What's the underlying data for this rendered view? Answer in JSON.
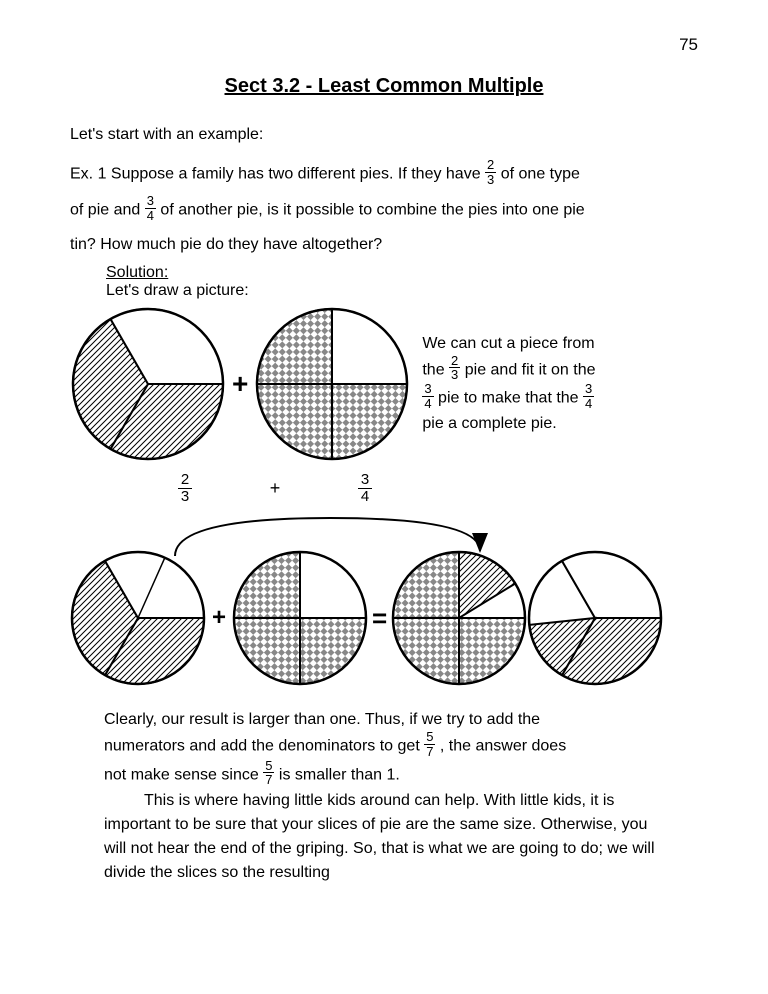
{
  "page_number": "75",
  "title": "Sect 3.2 - Least Common Multiple",
  "intro": "Let's start with an example:",
  "ex1": {
    "pre1": "Ex. 1 Suppose a family has two different pies. If they have ",
    "frac1": {
      "num": "2",
      "den": "3"
    },
    "mid1": " of one type",
    "pre2": "of pie and ",
    "frac2": {
      "num": "3",
      "den": "4"
    },
    "mid2": " of another pie, is it possible to combine the pies into one pie",
    "line3": "tin? How much pie do they have altogether?"
  },
  "solution_label": "Solution:",
  "draw_label": "Let's draw a picture:",
  "side": {
    "l1": "We can cut a piece from",
    "l2a": "the ",
    "f1": {
      "num": "2",
      "den": "3"
    },
    "l2b": " pie and fit it on the",
    "f2": {
      "num": "3",
      "den": "4"
    },
    "l3a": " pie to make that the ",
    "f3": {
      "num": "3",
      "den": "4"
    },
    "l4": "pie a complete pie."
  },
  "labels": {
    "f1": {
      "num": "2",
      "den": "3"
    },
    "plus": "+",
    "f2": {
      "num": "3",
      "den": "4"
    }
  },
  "bottom": {
    "p1a": "Clearly, our result is larger than one. Thus, if we try to add the",
    "p1b": "numerators and add the denominators to get ",
    "f1": {
      "num": "5",
      "den": "7"
    },
    "p1c": ", the answer does",
    "p2a": "not make sense since ",
    "f2": {
      "num": "5",
      "den": "7"
    },
    "p2b": " is smaller than 1.",
    "p3": "This is where having little kids around can help. With little kids, it is important to be sure that your slices of pie are the same size. Otherwise, you will not hear the end of the griping. So, that is what we are going to do; we will divide the slices so the resulting"
  },
  "pies": {
    "radius_large": 75,
    "radius_small": 66,
    "stroke": "#000000",
    "stroke_width": 2,
    "row1": [
      {
        "type": "thirds",
        "slices": 3,
        "filled": [
          0,
          1
        ],
        "pattern": "diag",
        "r": 75
      },
      {
        "type": "quarters",
        "slices": 4,
        "filled": [
          1,
          2,
          3
        ],
        "pattern": "checker",
        "r": 75
      }
    ],
    "row2": [
      {
        "type": "thirds",
        "slices": 3,
        "filled": [
          0,
          1
        ],
        "pattern": "diag",
        "r": 66,
        "cut_slice": 2,
        "cut_piece": true
      },
      {
        "type": "quarters",
        "slices": 4,
        "filled": [
          1,
          2,
          3
        ],
        "pattern": "checker",
        "r": 66
      },
      {
        "type": "quarters",
        "slices": 4,
        "filled": [
          1,
          2,
          3
        ],
        "pattern": "checker",
        "r": 66,
        "extra_slice": {
          "index": 0,
          "pattern": "diag",
          "partial": 0.65
        }
      },
      {
        "type": "thirds",
        "slices": 3,
        "filled": [
          0
        ],
        "pattern": "diag",
        "r": 66,
        "partial_slice": {
          "index": 1,
          "frac": 0.45
        }
      }
    ]
  },
  "operators": {
    "plus": "+",
    "equals": "="
  },
  "colors": {
    "bg": "#ffffff",
    "ink": "#000000"
  }
}
